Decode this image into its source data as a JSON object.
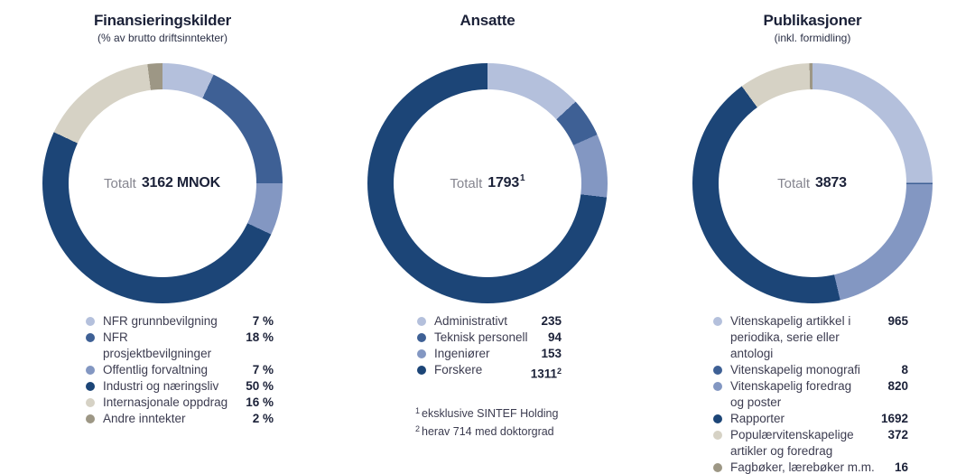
{
  "palette": {
    "light_blue": "#b4c0dc",
    "medium_blue": "#3e6095",
    "lavender_blue": "#8397c2",
    "navy": "#1c4577",
    "beige": "#d6d2c5",
    "taupe": "#9d9785",
    "text_dark": "#1b2138",
    "text_body": "#3c3c50",
    "text_muted": "#85858f"
  },
  "chart_data": [
    {
      "type": "donut",
      "title": "Finansieringskilder",
      "subtitle": "(% av brutto driftsinntekter)",
      "total_label": {
        "prefix": "Totalt",
        "value": "3162 MNOK",
        "sup": ""
      },
      "unit": "%",
      "start_angle_deg": 0,
      "direction": "clockwise",
      "segments": [
        {
          "label": "NFR grunnbevilgning",
          "value": 7,
          "display": "7 %",
          "sup": "",
          "color": "#b4c0dc"
        },
        {
          "label": "NFR prosjektbevilgninger",
          "value": 18,
          "display": "18 %",
          "sup": "",
          "color": "#3e6095"
        },
        {
          "label": "Offentlig forvaltning",
          "value": 7,
          "display": "7 %",
          "sup": "",
          "color": "#8397c2"
        },
        {
          "label": "Industri og næringsliv",
          "value": 50,
          "display": "50 %",
          "sup": "",
          "color": "#1c4577"
        },
        {
          "label": "Internasjonale oppdrag",
          "value": 16,
          "display": "16 %",
          "sup": "",
          "color": "#d6d2c5"
        },
        {
          "label": "Andre inntekter",
          "value": 2,
          "display": "2 %",
          "sup": "",
          "color": "#9d9785"
        }
      ],
      "footnotes": []
    },
    {
      "type": "donut",
      "title": "Ansatte",
      "subtitle": "",
      "total_label": {
        "prefix": "Totalt",
        "value": "1793",
        "sup": "1"
      },
      "unit": "persons",
      "start_angle_deg": 0,
      "direction": "clockwise",
      "segments": [
        {
          "label": "Administrativt",
          "value": 235,
          "display": "235",
          "sup": "",
          "color": "#b4c0dc"
        },
        {
          "label": "Teknisk personell",
          "value": 94,
          "display": "94",
          "sup": "",
          "color": "#3e6095"
        },
        {
          "label": "Ingeniører",
          "value": 153,
          "display": "153",
          "sup": "",
          "color": "#8397c2"
        },
        {
          "label": "Forskere",
          "value": 1311,
          "display": "1311",
          "sup": "2",
          "color": "#1c4577"
        }
      ],
      "footnotes": [
        {
          "sup": "1",
          "text": "eksklusive SINTEF Holding"
        },
        {
          "sup": "2",
          "text": "herav 714 med doktorgrad"
        }
      ]
    },
    {
      "type": "donut",
      "title": "Publikasjoner",
      "subtitle": "(inkl. formidling)",
      "total_label": {
        "prefix": "Totalt",
        "value": "3873",
        "sup": ""
      },
      "unit": "publications",
      "start_angle_deg": 0,
      "direction": "clockwise",
      "segments": [
        {
          "label": "Vitenskapelig artikkel i\nperiodika, serie eller antologi",
          "value": 965,
          "display": "965",
          "sup": "",
          "color": "#b4c0dc"
        },
        {
          "label": "Vitenskapelig monografi",
          "value": 8,
          "display": "8",
          "sup": "",
          "color": "#3e6095"
        },
        {
          "label": "Vitenskapelig foredrag\nog poster",
          "value": 820,
          "display": "820",
          "sup": "",
          "color": "#8397c2"
        },
        {
          "label": "Rapporter",
          "value": 1692,
          "display": "1692",
          "sup": "",
          "color": "#1c4577"
        },
        {
          "label": "Populærvitenskapelige\nartikler og foredrag",
          "value": 372,
          "display": "372",
          "sup": "",
          "color": "#d6d2c5"
        },
        {
          "label": "Fagbøker, lærebøker m.m.",
          "value": 16,
          "display": "16",
          "sup": "",
          "color": "#9d9785"
        }
      ],
      "footnotes": []
    }
  ]
}
